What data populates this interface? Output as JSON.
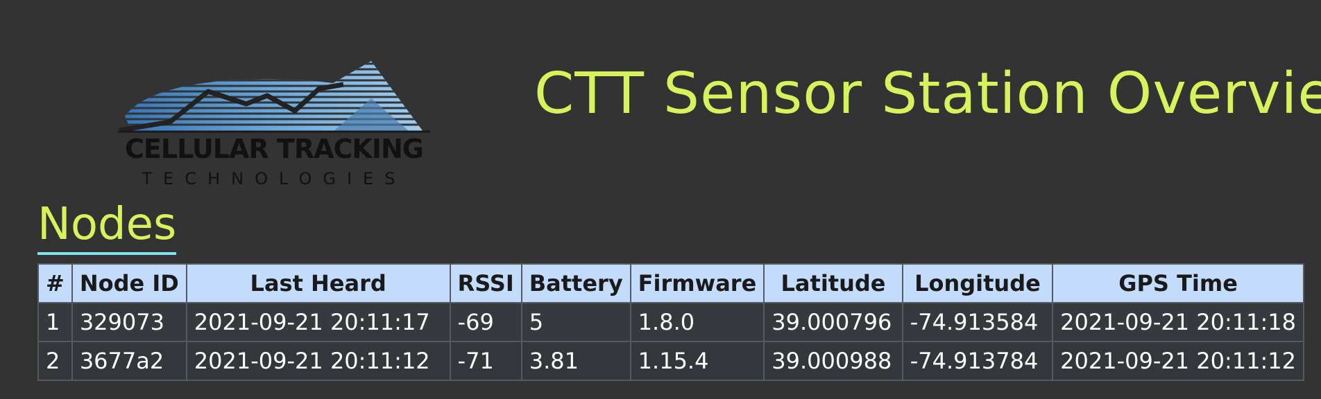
{
  "header": {
    "title": "CTT Sensor Station Overview",
    "logo_line1": "CELLULAR TRACKING",
    "logo_line2": "TECHNOLOGIES"
  },
  "nodes_section": {
    "heading": "Nodes",
    "columns": [
      "#",
      "Node ID",
      "Last Heard",
      "RSSI",
      "Battery",
      "Firmware",
      "Latitude",
      "Longitude",
      "GPS Time"
    ],
    "rows": [
      [
        "1",
        "329073",
        "2021-09-21 20:11:17",
        "-69",
        "5",
        "1.8.0",
        "39.000796",
        "-74.913584",
        "2021-09-21 20:11:18"
      ],
      [
        "2",
        "3677a2",
        "2021-09-21 20:11:12",
        "-71",
        "3.81",
        "1.15.4",
        "39.000988",
        "-74.913784",
        "2021-09-21 20:11:12"
      ]
    ]
  },
  "colors": {
    "background": "#333333",
    "accent_text": "#d6f35b",
    "heading_underline": "#7fe3f0",
    "table_header_bg": "#c3dcfb"
  }
}
